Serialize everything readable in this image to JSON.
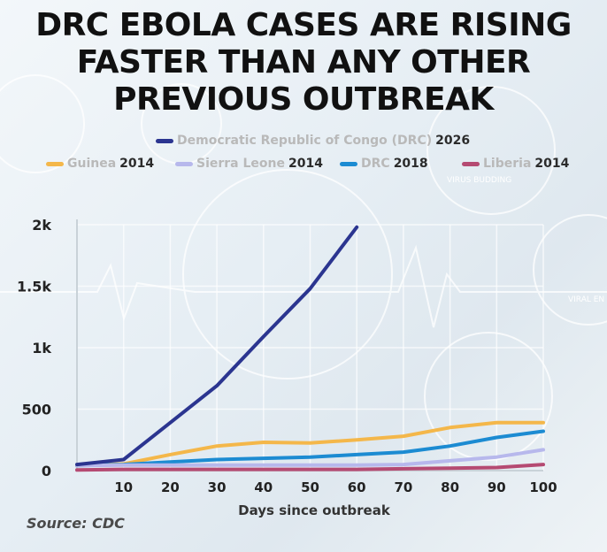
{
  "headline": {
    "line1": "DRC EBOLA CASES ARE RISING",
    "line2": "FASTER THAN ANY OTHER",
    "line3": "PREVIOUS OUTBREAK"
  },
  "background": {
    "label_virus_budding": "VIRUS BUDDING",
    "label_viral_entry": "VIRAL EN"
  },
  "source": "Source: CDC",
  "colors": {
    "drc2026": "#2b3590",
    "guinea2014": "#f4b74a",
    "sierra2014": "#b7b8ec",
    "drc2018": "#1c8bd2",
    "liberia2014": "#b54a72"
  },
  "legend": [
    {
      "name": "Democratic Republic of Congo (DRC)",
      "year": "2026",
      "color_key": "drc2026"
    },
    {
      "name": "Guinea",
      "year": "2014",
      "color_key": "guinea2014"
    },
    {
      "name": "Sierra Leone",
      "year": "2014",
      "color_key": "sierra2014"
    },
    {
      "name": "DRC",
      "year": "2018",
      "color_key": "drc2018"
    },
    {
      "name": "Liberia",
      "year": "2014",
      "color_key": "liberia2014"
    }
  ],
  "chart_data": {
    "type": "line",
    "title": "",
    "xlabel": "Days since outbreak",
    "ylabel": "",
    "xlim": [
      0,
      100
    ],
    "ylim": [
      0,
      2000
    ],
    "x_ticks": [
      10,
      20,
      30,
      40,
      50,
      60,
      70,
      80,
      90,
      100
    ],
    "x_tick_labels": [
      "10",
      "20",
      "30",
      "40",
      "50",
      "60",
      "70",
      "80",
      "90",
      "100"
    ],
    "y_ticks": [
      0,
      500,
      1000,
      1500,
      2000
    ],
    "y_tick_labels": [
      "0",
      "500",
      "1k",
      "1.5k",
      "2k"
    ],
    "grid": true,
    "legend_position": "top",
    "series": [
      {
        "name": "Democratic Republic of Congo (DRC) 2026",
        "color_key": "drc2026",
        "x": [
          0,
          10,
          20,
          30,
          40,
          50,
          60
        ],
        "y": [
          50,
          90,
          390,
          690,
          1090,
          1480,
          1980
        ]
      },
      {
        "name": "Guinea 2014",
        "color_key": "guinea2014",
        "x": [
          0,
          10,
          20,
          30,
          40,
          50,
          60,
          70,
          80,
          90,
          100
        ],
        "y": [
          40,
          55,
          130,
          200,
          230,
          225,
          250,
          280,
          350,
          390,
          390
        ]
      },
      {
        "name": "DRC 2018",
        "color_key": "drc2018",
        "x": [
          0,
          10,
          20,
          30,
          40,
          50,
          60,
          70,
          80,
          90,
          100
        ],
        "y": [
          40,
          50,
          70,
          90,
          100,
          110,
          130,
          150,
          200,
          270,
          320
        ]
      },
      {
        "name": "Sierra Leone 2014",
        "color_key": "sierra2014",
        "x": [
          0,
          10,
          20,
          30,
          40,
          50,
          60,
          70,
          80,
          90,
          100
        ],
        "y": [
          40,
          45,
          45,
          45,
          45,
          45,
          45,
          50,
          80,
          110,
          170
        ]
      },
      {
        "name": "Liberia 2014",
        "color_key": "liberia2014",
        "x": [
          0,
          10,
          20,
          30,
          40,
          50,
          60,
          70,
          80,
          90,
          100
        ],
        "y": [
          5,
          10,
          10,
          10,
          10,
          10,
          10,
          15,
          20,
          25,
          50
        ]
      }
    ]
  }
}
